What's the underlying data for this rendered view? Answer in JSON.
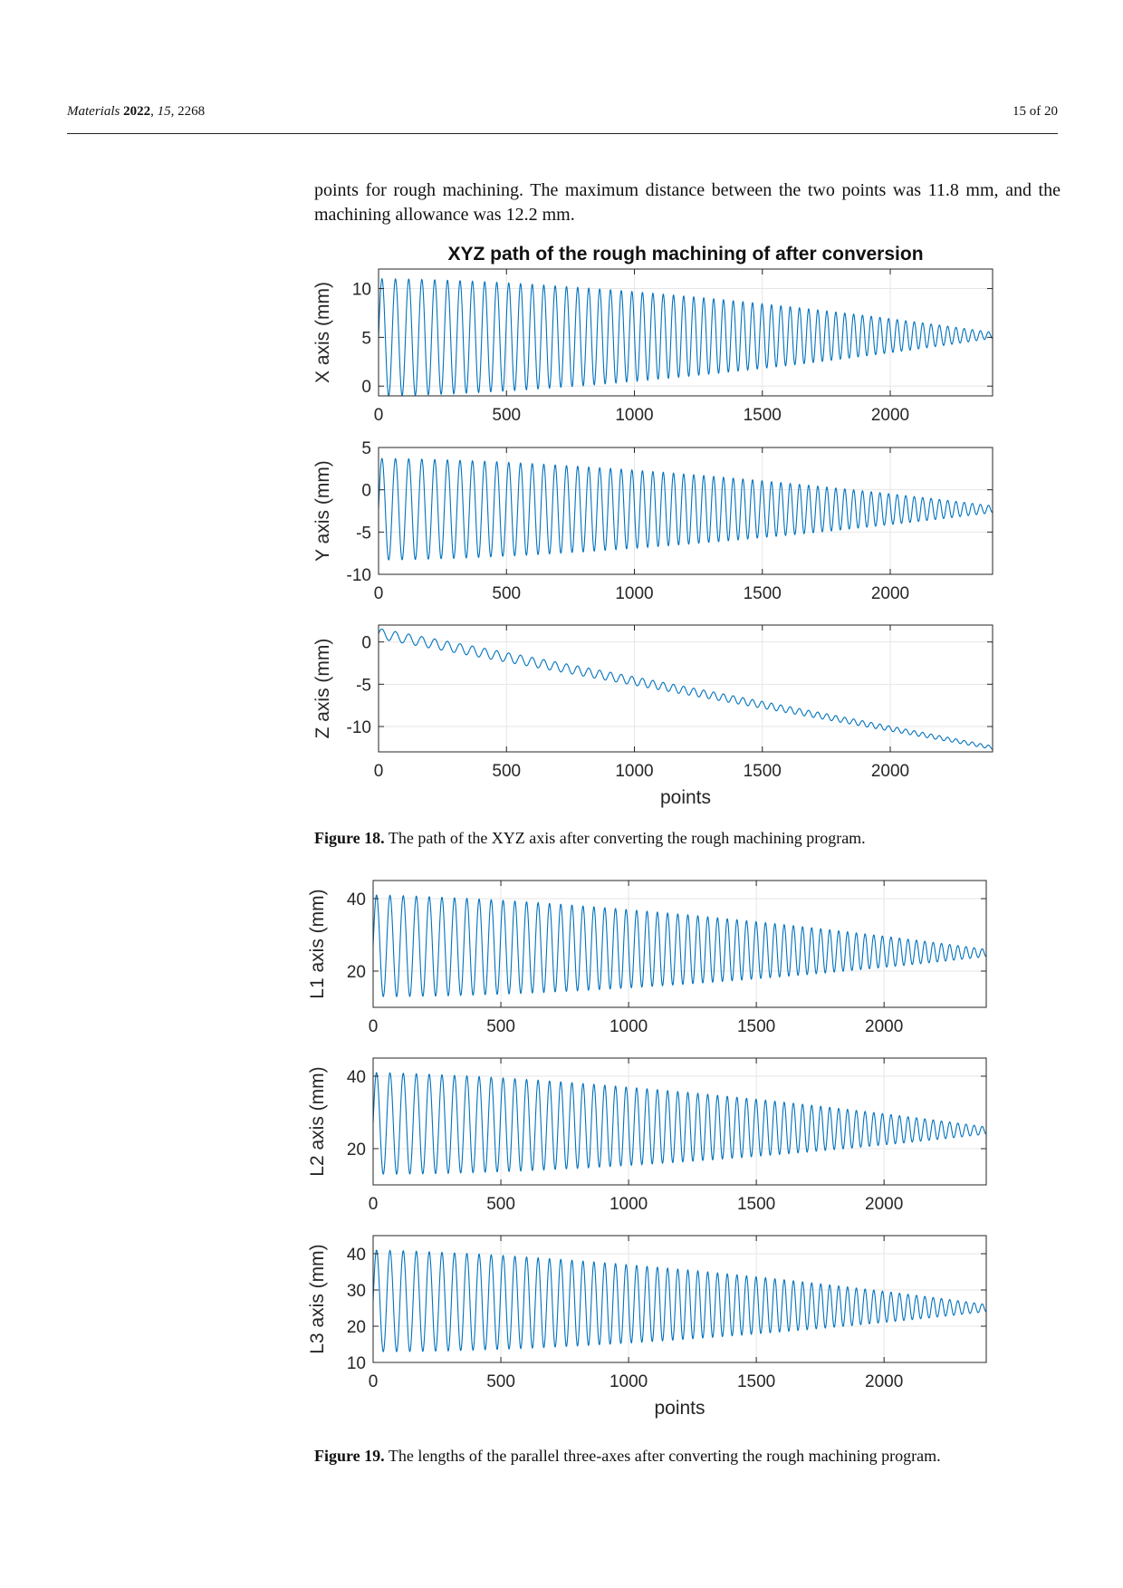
{
  "header": {
    "journal": "Materials",
    "year": "2022",
    "volume": "15",
    "article": "2268",
    "page": "15 of 20"
  },
  "body": {
    "paragraph": "points for rough machining. The maximum distance between the two points was 11.8 mm, and the machining allowance was 12.2 mm."
  },
  "figure18": {
    "caption_label": "Figure 18.",
    "caption_text": " The path of the XYZ axis after converting the rough machining program."
  },
  "figure19": {
    "caption_label": "Figure 19.",
    "caption_text": " The lengths of the parallel three-axes after converting the rough machining program."
  },
  "colors": {
    "line": "#0072BD",
    "grid": "#e6e6e6",
    "axis": "#262626"
  },
  "chart_data": [
    {
      "type": "line",
      "title": "XYZ path of the rough machining of after conversion",
      "xlabel": "",
      "ylabel": "X axis (mm)",
      "xlim": [
        0,
        2400
      ],
      "ylim": [
        -1,
        12
      ],
      "xticks": [
        0,
        500,
        1000,
        1500,
        2000
      ],
      "yticks": [
        0,
        5,
        10
      ],
      "series": [
        {
          "center_start": 5.0,
          "center_end": 5.2,
          "amp_start": 6.0,
          "amp_end": 0.3,
          "cycles": 45,
          "n": 2400
        }
      ]
    },
    {
      "type": "line",
      "title": "",
      "xlabel": "",
      "ylabel": "Y axis (mm)",
      "xlim": [
        0,
        2400
      ],
      "ylim": [
        -10,
        5
      ],
      "xticks": [
        0,
        500,
        1000,
        1500,
        2000
      ],
      "yticks": [
        -10,
        -5,
        0,
        5
      ],
      "series": [
        {
          "center_start": -2.3,
          "center_end": -2.3,
          "amp_start": 6.0,
          "amp_end": 0.4,
          "cycles": 45,
          "n": 2400
        }
      ]
    },
    {
      "type": "line",
      "title": "",
      "xlabel": "points",
      "ylabel": "Z axis (mm)",
      "xlim": [
        0,
        2400
      ],
      "ylim": [
        -13,
        2
      ],
      "xticks": [
        0,
        500,
        1000,
        1500,
        2000
      ],
      "yticks": [
        -10,
        -5,
        0
      ],
      "series": [
        {
          "center_start": 1.0,
          "center_end": -12.5,
          "amp_start": 0.6,
          "amp_end": 0.2,
          "cycles": 45,
          "n": 2400
        }
      ]
    },
    {
      "type": "line",
      "title": "",
      "xlabel": "",
      "ylabel": "L1 axis (mm)",
      "xlim": [
        0,
        2400
      ],
      "ylim": [
        10,
        45
      ],
      "xticks": [
        0,
        500,
        1000,
        1500,
        2000
      ],
      "yticks": [
        20,
        40
      ],
      "series": [
        {
          "center_start": 27,
          "center_end": 25,
          "amp_start": 14,
          "amp_end": 1.0,
          "cycles": 45,
          "n": 2400
        }
      ]
    },
    {
      "type": "line",
      "title": "",
      "xlabel": "",
      "ylabel": "L2 axis (mm)",
      "xlim": [
        0,
        2400
      ],
      "ylim": [
        10,
        45
      ],
      "xticks": [
        0,
        500,
        1000,
        1500,
        2000
      ],
      "yticks": [
        20,
        40
      ],
      "series": [
        {
          "center_start": 27,
          "center_end": 25,
          "amp_start": 14,
          "amp_end": 1.0,
          "cycles": 45,
          "n": 2400
        }
      ]
    },
    {
      "type": "line",
      "title": "",
      "xlabel": "points",
      "ylabel": "L3 axis (mm)",
      "xlim": [
        0,
        2400
      ],
      "ylim": [
        10,
        45
      ],
      "xticks": [
        0,
        500,
        1000,
        1500,
        2000
      ],
      "yticks": [
        10,
        20,
        30,
        40
      ],
      "series": [
        {
          "center_start": 27,
          "center_end": 25,
          "amp_start": 14,
          "amp_end": 1.0,
          "cycles": 45,
          "n": 2400
        }
      ]
    }
  ]
}
